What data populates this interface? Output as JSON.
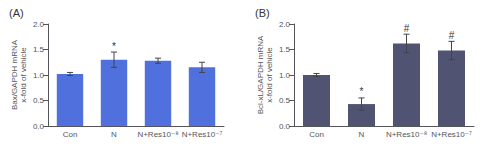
{
  "chart_data": [
    {
      "type": "bar",
      "title": "(A)",
      "categories": [
        "Con",
        "N",
        "N+Res10⁻⁸",
        "N+Res10⁻⁷"
      ],
      "values": [
        1.02,
        1.3,
        1.28,
        1.15
      ],
      "errors": [
        0.03,
        0.15,
        0.05,
        0.1
      ],
      "significance": [
        null,
        "*",
        null,
        null
      ],
      "ylabel": "Bax/GAPDH mRNA\nx-fold of vehicle",
      "ylim": [
        0,
        2.0
      ],
      "yticks": [
        {
          "value": 0,
          "label": "0.0"
        },
        0.5,
        {
          "value": 1,
          "label": "1.0"
        },
        1.5,
        {
          "value": 2,
          "label": "2.0"
        }
      ],
      "grid": false
    },
    {
      "type": "bar",
      "title": "(B)",
      "categories": [
        "Con",
        "N",
        "N+Res10⁻⁸",
        "N+Res10⁻⁷"
      ],
      "values": [
        1.0,
        0.43,
        1.62,
        1.48
      ],
      "errors": [
        0.03,
        0.12,
        0.18,
        0.18
      ],
      "significance": [
        null,
        "*",
        "#",
        "#"
      ],
      "ylabel": "Bcl-xL/GAPDH mRNA\nx-fold of vehicle",
      "ylim": [
        0,
        2.0
      ],
      "yticks": [
        {
          "value": 0,
          "label": "0.0"
        },
        0.5,
        {
          "value": 1,
          "label": "1.0"
        },
        1.5,
        {
          "value": 2,
          "label": "2.0"
        }
      ],
      "grid": false
    }
  ]
}
